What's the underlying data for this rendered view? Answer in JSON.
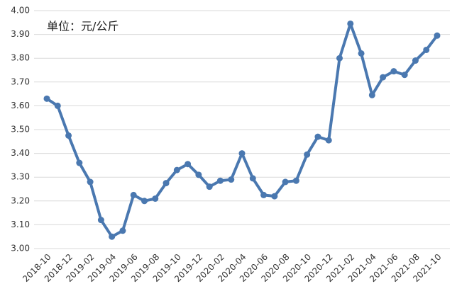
{
  "chart_data": {
    "type": "line",
    "annotation": "单位：元/公斤",
    "categories": [
      "2018-10",
      null,
      "2018-12",
      null,
      "2019-02",
      null,
      "2019-04",
      null,
      "2019-06",
      null,
      "2019-08",
      null,
      "2019-10",
      null,
      "2019-12",
      null,
      "2020-02",
      null,
      "2020-04",
      null,
      "2020-06",
      null,
      "2020-08",
      null,
      "2020-10",
      null,
      "2020-12",
      null,
      "2021-02",
      null,
      "2021-04",
      null,
      "2021-06",
      null,
      "2021-08",
      null,
      "2021-10"
    ],
    "values": [
      3.63,
      3.6,
      3.475,
      3.36,
      3.28,
      3.12,
      3.05,
      3.075,
      3.225,
      3.2,
      3.21,
      3.275,
      3.33,
      3.355,
      3.31,
      3.26,
      3.285,
      3.29,
      3.4,
      3.295,
      3.225,
      3.22,
      3.28,
      3.285,
      3.395,
      3.47,
      3.455,
      3.8,
      3.945,
      3.82,
      3.645,
      3.72,
      3.745,
      3.73,
      3.79,
      3.835,
      3.895
    ],
    "color": "#4a78b0",
    "ylim": [
      3.0,
      4.0
    ],
    "yticks": [
      {
        "value": 3.0,
        "label": "3.00"
      },
      {
        "value": 3.1,
        "label": "3.10"
      },
      {
        "value": 3.2,
        "label": "3.20"
      },
      {
        "value": 3.3,
        "label": "3.30"
      },
      {
        "value": 3.4,
        "label": "3.40"
      },
      {
        "value": 3.5,
        "label": "3.50"
      },
      {
        "value": 3.6,
        "label": "3.60"
      },
      {
        "value": 3.7,
        "label": "3.70"
      },
      {
        "value": 3.8,
        "label": "3.80"
      },
      {
        "value": 3.9,
        "label": "3.90"
      },
      {
        "value": 4.0,
        "label": "4.00"
      }
    ],
    "grid": true
  }
}
